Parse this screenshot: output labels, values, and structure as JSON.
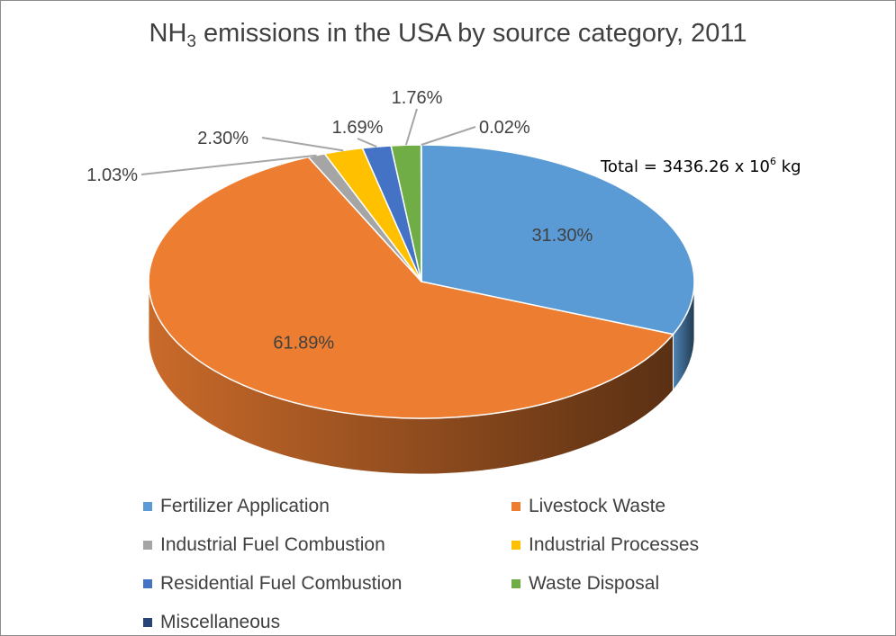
{
  "title": {
    "prefix": "NH",
    "subscript": "3",
    "suffix": " emissions in the USA by source category, 2011"
  },
  "note": {
    "text": "Total = 3436.26 x 10",
    "superscript": "6",
    "unit": " kg"
  },
  "chart_data": {
    "type": "pie",
    "style": "3d-tilted",
    "legend_position": "bottom",
    "slices": [
      {
        "name": "Fertilizer Application",
        "value": 31.3,
        "label": "31.30%",
        "color": "#5b9bd5"
      },
      {
        "name": "Livestock Waste",
        "value": 61.89,
        "label": "61.89%",
        "color": "#ed7d31"
      },
      {
        "name": "Industrial Fuel Combustion",
        "value": 1.03,
        "label": "1.03%",
        "color": "#a5a5a5"
      },
      {
        "name": "Industrial Processes",
        "value": 2.3,
        "label": "2.30%",
        "color": "#ffc000"
      },
      {
        "name": "Residential Fuel Combustion",
        "value": 1.69,
        "label": "1.69%",
        "color": "#4472c4"
      },
      {
        "name": "Waste Disposal",
        "value": 1.76,
        "label": "1.76%",
        "color": "#70ad47"
      },
      {
        "name": "Miscellaneous",
        "value": 0.02,
        "label": "0.02%",
        "color": "#264478"
      }
    ]
  }
}
